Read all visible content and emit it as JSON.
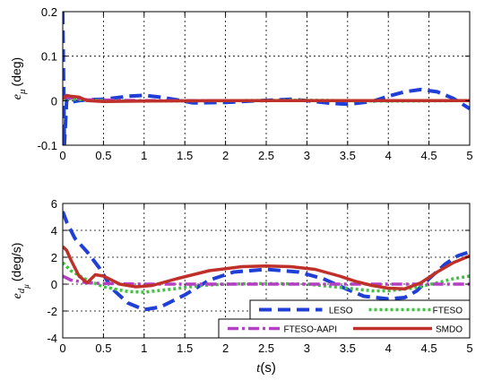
{
  "colors": {
    "LESO": "#1f3fd6",
    "FTESO": "#3ec43e",
    "FTESO-AAPI": "#b53fc3",
    "SMDO": "#c0302a"
  },
  "chart_data": [
    {
      "type": "line",
      "id": "top",
      "title": "",
      "ylabel": {
        "base": "e",
        "sub": "μ",
        "unit": "(deg)"
      },
      "xlabel": "",
      "xlim": [
        0,
        5
      ],
      "ylim": [
        -0.1,
        0.2
      ],
      "xticks": [
        "0",
        "0.5",
        "1",
        "1.5",
        "2",
        "2.5",
        "3",
        "3.5",
        "4",
        "4.5",
        "5"
      ],
      "yticks": [
        "-0.1",
        "0",
        "0.1",
        "0.2"
      ],
      "grid": true,
      "series": [
        {
          "name": "LESO",
          "x": [
            0,
            0.02,
            0.05,
            0.1,
            0.2,
            0.3,
            0.5,
            0.8,
            1.0,
            1.2,
            1.4,
            1.6,
            2.0,
            2.4,
            2.8,
            3.0,
            3.3,
            3.5,
            3.8,
            4.0,
            4.2,
            4.4,
            4.6,
            4.8,
            5.0
          ],
          "y": [
            0.2,
            -0.1,
            0.005,
            -0.003,
            0.0,
            0.002,
            0.003,
            0.01,
            0.012,
            0.008,
            0.002,
            -0.005,
            -0.004,
            0.0,
            0.003,
            0.0,
            -0.006,
            -0.008,
            -0.002,
            0.01,
            0.02,
            0.025,
            0.02,
            0.005,
            -0.018
          ]
        },
        {
          "name": "FTESO",
          "x": [
            0,
            0.1,
            0.3,
            1.0,
            2.0,
            3.0,
            4.0,
            5.0
          ],
          "y": [
            0.006,
            0.004,
            0.001,
            -0.001,
            0.0,
            0.001,
            -0.001,
            0.0
          ]
        },
        {
          "name": "FTESO-AAPI",
          "x": [
            0,
            0.1,
            0.3,
            1.0,
            2.0,
            3.0,
            4.0,
            5.0
          ],
          "y": [
            0.008,
            0.006,
            0.002,
            0.0,
            0.0,
            0.0,
            0.0,
            0.0
          ]
        },
        {
          "name": "SMDO",
          "x": [
            0,
            0.05,
            0.1,
            0.2,
            0.3,
            0.5,
            1.0,
            2.0,
            3.0,
            4.0,
            5.0
          ],
          "y": [
            0.004,
            0.012,
            0.01,
            0.008,
            0.0,
            -0.002,
            -0.001,
            0.0,
            0.0,
            0.0,
            0.0
          ]
        }
      ]
    },
    {
      "type": "line",
      "id": "bottom",
      "title": "",
      "ylabel": {
        "base": "e",
        "sub": "d",
        "subsub": "μ",
        "unit": "(deg/s)"
      },
      "xlabel": {
        "var": "t",
        "unit": "(s)"
      },
      "xlim": [
        0,
        5
      ],
      "ylim": [
        -4,
        6
      ],
      "xticks": [
        "0",
        "0.5",
        "1",
        "1.5",
        "2",
        "2.5",
        "3",
        "3.5",
        "4",
        "4.5",
        "5"
      ],
      "yticks": [
        "-4",
        "-2",
        "0",
        "2",
        "4",
        "6"
      ],
      "grid": true,
      "legend_position": "bottom-right",
      "legend": [
        "LESO",
        "FTESO",
        "FTESO-AAPI",
        "SMDO"
      ],
      "series": [
        {
          "name": "LESO",
          "x": [
            0,
            0.05,
            0.15,
            0.3,
            0.45,
            0.6,
            0.8,
            1.0,
            1.2,
            1.5,
            1.8,
            2.1,
            2.5,
            2.9,
            3.2,
            3.5,
            3.7,
            4.0,
            4.2,
            4.35,
            4.5,
            4.7,
            4.85,
            5.0
          ],
          "y": [
            5.4,
            4.6,
            3.4,
            2.4,
            1.2,
            -0.3,
            -1.4,
            -1.9,
            -1.7,
            -0.8,
            0.3,
            0.9,
            1.1,
            0.9,
            0.4,
            -0.4,
            -0.9,
            -1.1,
            -1.0,
            -0.5,
            0.4,
            1.5,
            2.1,
            2.4
          ]
        },
        {
          "name": "FTESO",
          "x": [
            0,
            0.1,
            0.3,
            0.5,
            0.8,
            1.0,
            1.3,
            1.7,
            2.0,
            2.5,
            3.0,
            3.5,
            3.8,
            4.0,
            4.3,
            4.6,
            4.8,
            5.0
          ],
          "y": [
            1.6,
            1.0,
            0.3,
            -0.2,
            -0.55,
            -0.6,
            -0.4,
            -0.1,
            0.0,
            0.05,
            0.0,
            -0.3,
            -0.5,
            -0.5,
            -0.3,
            0.1,
            0.4,
            0.6
          ]
        },
        {
          "name": "FTESO-AAPI",
          "x": [
            0,
            0.1,
            0.3,
            0.5,
            1.0,
            2.0,
            3.0,
            4.0,
            5.0
          ],
          "y": [
            0.6,
            0.3,
            0.1,
            0.05,
            0.0,
            0.0,
            0.0,
            0.0,
            0.0
          ]
        },
        {
          "name": "SMDO",
          "x": [
            0,
            0.05,
            0.1,
            0.2,
            0.3,
            0.4,
            0.5,
            0.7,
            0.9,
            1.1,
            1.4,
            1.8,
            2.2,
            2.5,
            2.8,
            3.1,
            3.4,
            3.6,
            3.8,
            4.0,
            4.2,
            4.4,
            4.6,
            4.8,
            5.0
          ],
          "y": [
            2.8,
            2.5,
            1.8,
            0.6,
            0.1,
            0.7,
            0.6,
            0.0,
            -0.2,
            -0.1,
            0.4,
            1.0,
            1.3,
            1.35,
            1.3,
            1.1,
            0.6,
            0.2,
            -0.1,
            -0.3,
            -0.35,
            0.1,
            0.9,
            1.6,
            2.1
          ]
        }
      ]
    }
  ]
}
